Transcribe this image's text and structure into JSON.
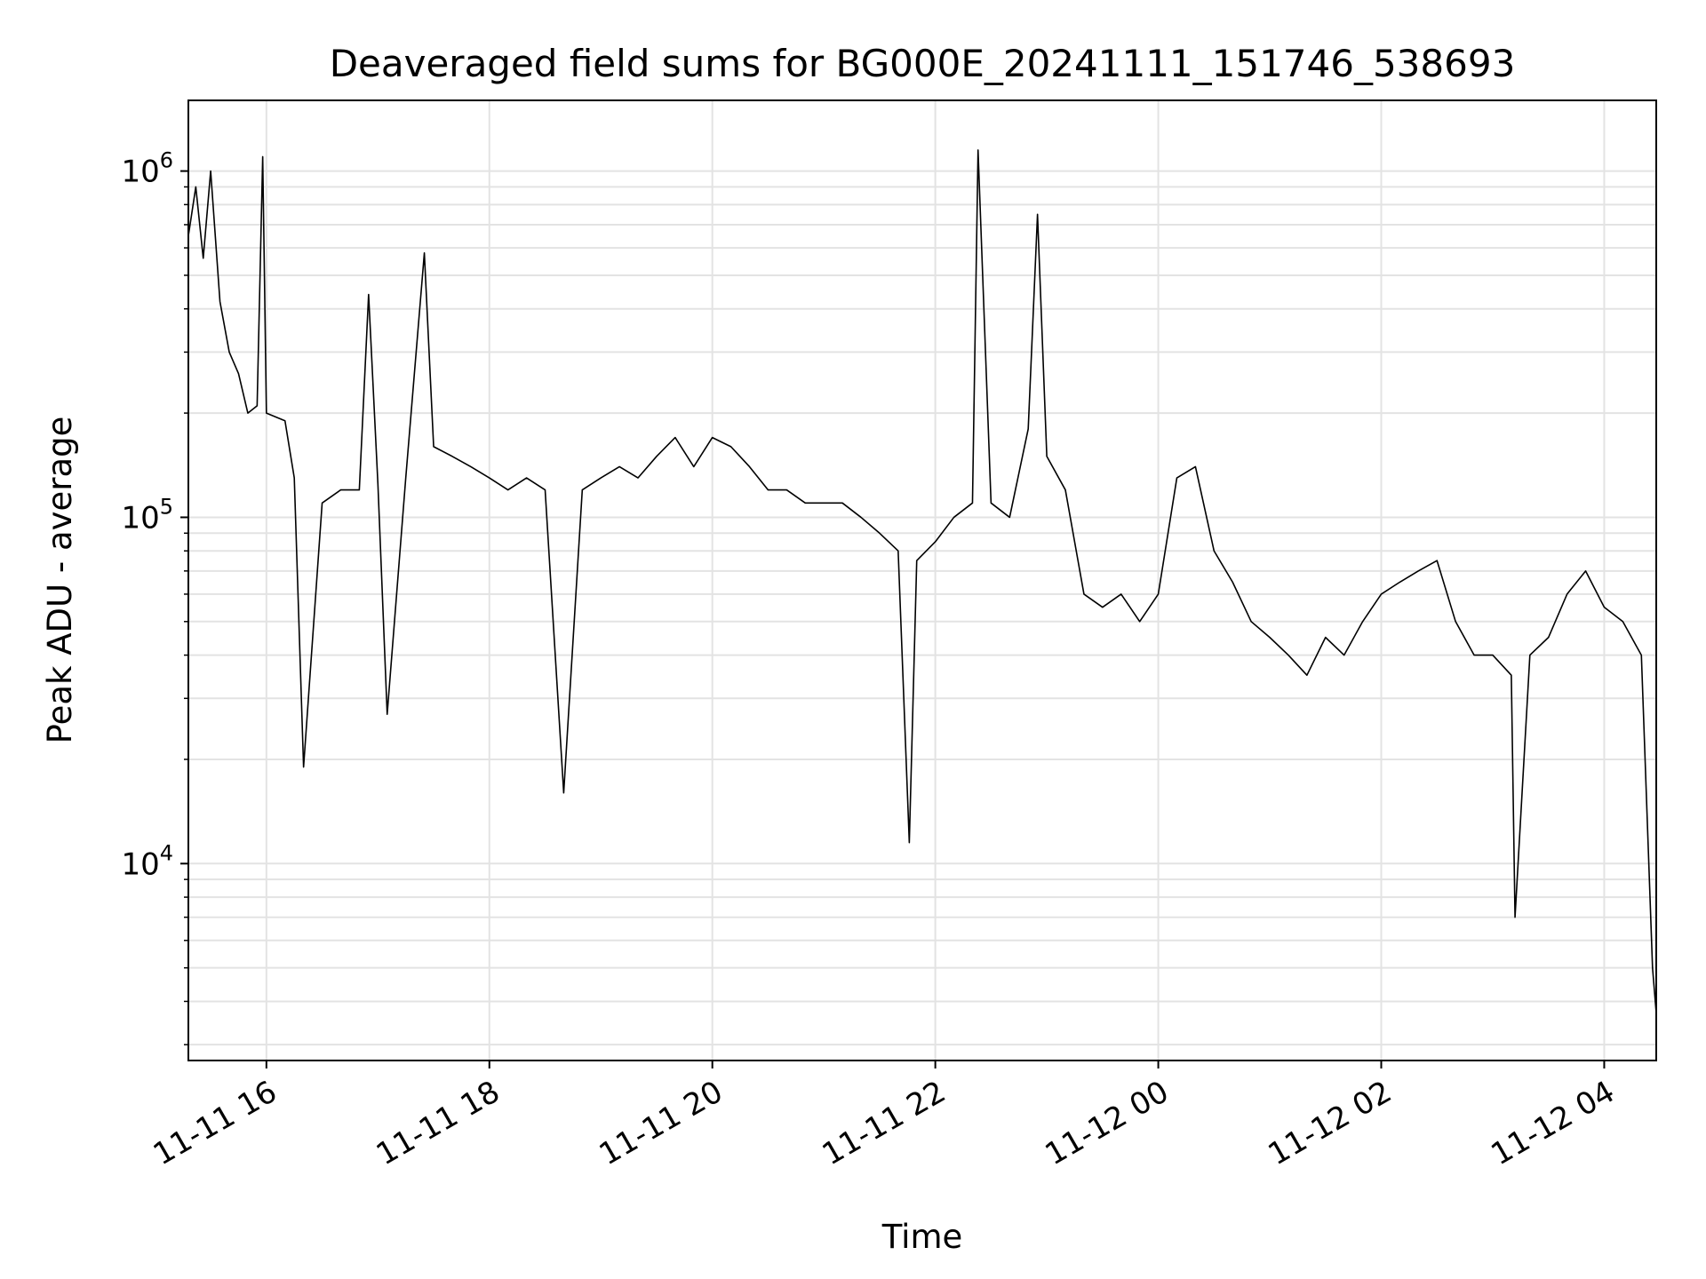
{
  "chart_data": {
    "type": "line",
    "title": "Deaveraged field sums for BG000E_20241111_151746_538693",
    "xlabel": "Time",
    "ylabel": "Peak ADU - average",
    "xlim": [
      "2024-11-11 15:18",
      "2024-11-12 04:28"
    ],
    "ylim": [
      2700,
      1600000
    ],
    "yscale": "log",
    "grid": true,
    "colors": {
      "line": "#000000",
      "grid": "#e3e3e3",
      "frame": "#000000"
    },
    "x_ticks": [
      {
        "t": "2024-11-11 16:00",
        "label": "11-11 16"
      },
      {
        "t": "2024-11-11 18:00",
        "label": "11-11 18"
      },
      {
        "t": "2024-11-11 20:00",
        "label": "11-11 20"
      },
      {
        "t": "2024-11-11 22:00",
        "label": "11-11 22"
      },
      {
        "t": "2024-11-12 00:00",
        "label": "11-12 00"
      },
      {
        "t": "2024-11-12 02:00",
        "label": "11-12 02"
      },
      {
        "t": "2024-11-12 04:00",
        "label": "11-12 04"
      }
    ],
    "y_ticks": [
      {
        "value": 10000,
        "base": "10",
        "exp": "4"
      },
      {
        "value": 100000,
        "base": "10",
        "exp": "5"
      },
      {
        "value": 1000000,
        "base": "10",
        "exp": "6"
      }
    ],
    "series": [
      {
        "color": "#000000",
        "points": [
          [
            "2024-11-11 15:18",
            650000
          ],
          [
            "2024-11-11 15:22",
            900000
          ],
          [
            "2024-11-11 15:26",
            560000
          ],
          [
            "2024-11-11 15:30",
            1000000
          ],
          [
            "2024-11-11 15:35",
            420000
          ],
          [
            "2024-11-11 15:40",
            300000
          ],
          [
            "2024-11-11 15:45",
            260000
          ],
          [
            "2024-11-11 15:50",
            200000
          ],
          [
            "2024-11-11 15:55",
            210000
          ],
          [
            "2024-11-11 15:58",
            1100000
          ],
          [
            "2024-11-11 16:00",
            200000
          ],
          [
            "2024-11-11 16:10",
            190000
          ],
          [
            "2024-11-11 16:15",
            130000
          ],
          [
            "2024-11-11 16:20",
            19000
          ],
          [
            "2024-11-11 16:30",
            110000
          ],
          [
            "2024-11-11 16:40",
            120000
          ],
          [
            "2024-11-11 16:50",
            120000
          ],
          [
            "2024-11-11 16:55",
            440000
          ],
          [
            "2024-11-11 17:00",
            125000
          ],
          [
            "2024-11-11 17:05",
            27000
          ],
          [
            "2024-11-11 17:15",
            130000
          ],
          [
            "2024-11-11 17:25",
            580000
          ],
          [
            "2024-11-11 17:30",
            160000
          ],
          [
            "2024-11-11 17:40",
            150000
          ],
          [
            "2024-11-11 17:50",
            140000
          ],
          [
            "2024-11-11 18:00",
            130000
          ],
          [
            "2024-11-11 18:10",
            120000
          ],
          [
            "2024-11-11 18:20",
            130000
          ],
          [
            "2024-11-11 18:30",
            120000
          ],
          [
            "2024-11-11 18:40",
            16000
          ],
          [
            "2024-11-11 18:50",
            120000
          ],
          [
            "2024-11-11 19:00",
            130000
          ],
          [
            "2024-11-11 19:10",
            140000
          ],
          [
            "2024-11-11 19:20",
            130000
          ],
          [
            "2024-11-11 19:30",
            150000
          ],
          [
            "2024-11-11 19:40",
            170000
          ],
          [
            "2024-11-11 19:50",
            140000
          ],
          [
            "2024-11-11 20:00",
            170000
          ],
          [
            "2024-11-11 20:10",
            160000
          ],
          [
            "2024-11-11 20:20",
            140000
          ],
          [
            "2024-11-11 20:30",
            120000
          ],
          [
            "2024-11-11 20:40",
            120000
          ],
          [
            "2024-11-11 20:50",
            110000
          ],
          [
            "2024-11-11 21:00",
            110000
          ],
          [
            "2024-11-11 21:10",
            110000
          ],
          [
            "2024-11-11 21:20",
            100000
          ],
          [
            "2024-11-11 21:30",
            90000
          ],
          [
            "2024-11-11 21:40",
            80000
          ],
          [
            "2024-11-11 21:46",
            11500
          ],
          [
            "2024-11-11 21:50",
            75000
          ],
          [
            "2024-11-11 22:00",
            85000
          ],
          [
            "2024-11-11 22:10",
            100000
          ],
          [
            "2024-11-11 22:20",
            110000
          ],
          [
            "2024-11-11 22:23",
            1150000
          ],
          [
            "2024-11-11 22:30",
            110000
          ],
          [
            "2024-11-11 22:40",
            100000
          ],
          [
            "2024-11-11 22:50",
            180000
          ],
          [
            "2024-11-11 22:55",
            750000
          ],
          [
            "2024-11-11 23:00",
            150000
          ],
          [
            "2024-11-11 23:10",
            120000
          ],
          [
            "2024-11-11 23:20",
            60000
          ],
          [
            "2024-11-11 23:30",
            55000
          ],
          [
            "2024-11-11 23:40",
            60000
          ],
          [
            "2024-11-11 23:50",
            50000
          ],
          [
            "2024-11-12 00:00",
            60000
          ],
          [
            "2024-11-12 00:10",
            130000
          ],
          [
            "2024-11-12 00:20",
            140000
          ],
          [
            "2024-11-12 00:30",
            80000
          ],
          [
            "2024-11-12 00:40",
            65000
          ],
          [
            "2024-11-12 00:50",
            50000
          ],
          [
            "2024-11-12 01:00",
            45000
          ],
          [
            "2024-11-12 01:10",
            40000
          ],
          [
            "2024-11-12 01:20",
            35000
          ],
          [
            "2024-11-12 01:30",
            45000
          ],
          [
            "2024-11-12 01:40",
            40000
          ],
          [
            "2024-11-12 01:50",
            50000
          ],
          [
            "2024-11-12 02:00",
            60000
          ],
          [
            "2024-11-12 02:10",
            65000
          ],
          [
            "2024-11-12 02:20",
            70000
          ],
          [
            "2024-11-12 02:30",
            75000
          ],
          [
            "2024-11-12 02:40",
            50000
          ],
          [
            "2024-11-12 02:50",
            40000
          ],
          [
            "2024-11-12 03:00",
            40000
          ],
          [
            "2024-11-12 03:10",
            35000
          ],
          [
            "2024-11-12 03:12",
            7000
          ],
          [
            "2024-11-12 03:20",
            40000
          ],
          [
            "2024-11-12 03:30",
            45000
          ],
          [
            "2024-11-12 03:40",
            60000
          ],
          [
            "2024-11-12 03:50",
            70000
          ],
          [
            "2024-11-12 04:00",
            55000
          ],
          [
            "2024-11-12 04:10",
            50000
          ],
          [
            "2024-11-12 04:20",
            40000
          ],
          [
            "2024-11-12 04:26",
            5000
          ],
          [
            "2024-11-12 04:28",
            3700
          ]
        ]
      }
    ]
  }
}
